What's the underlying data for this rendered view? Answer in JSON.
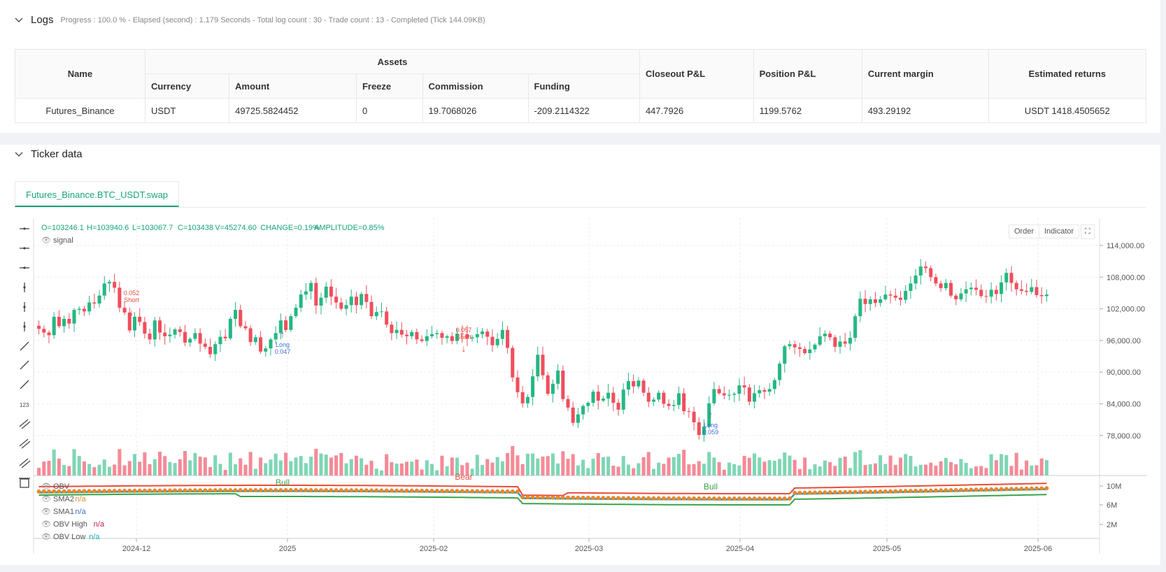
{
  "logs": {
    "title": "Logs",
    "progress": "Progress : 100.0 % - Elapsed (second) : 1.179  Seconds - Total log count : 30 - Trade count : 13 - Completed (Tick 144.09KB)",
    "table": {
      "h_name": "Name",
      "h_assets": "Assets",
      "h_currency": "Currency",
      "h_amount": "Amount",
      "h_freeze": "Freeze",
      "h_commission": "Commission",
      "h_funding": "Funding",
      "h_closeout": "Closeout P&L",
      "h_position": "Position P&L",
      "h_margin": "Current margin",
      "h_returns": "Estimated returns",
      "row": {
        "name": "Futures_Binance",
        "currency": "USDT",
        "amount": "49725.5824452",
        "freeze": "0",
        "commission": "19.7068026",
        "funding": "-209.2114322",
        "closeout": "447.7926",
        "position": "1199.5762",
        "margin": "493.29192",
        "returns": "USDT 1418.4505652"
      }
    }
  },
  "ticker": {
    "title": "Ticker data",
    "tab": "Futures_Binance.BTC_USDT.swap",
    "order_button": "Order",
    "indicator_button": "Indicator",
    "ohlc": {
      "o": "O=103246.1",
      "h": "H=103940.6",
      "l": "L=103067.7",
      "c": "C=103438",
      "v": "V=45274.60",
      "change": "CHANGE=0.19%",
      "amplitude": "AMPLITUDE=0.85%"
    },
    "signal_label": "signal",
    "legend": [
      {
        "name": "OBV",
        "value": "",
        "color": "#333333"
      },
      {
        "name": "SMA2",
        "value": "n/a",
        "color": "#e8892b"
      },
      {
        "name": "SMA1",
        "value": "n/a",
        "color": "#3b6fd8"
      },
      {
        "name": "OBV High",
        "value": "n/a",
        "color": "#c2185b"
      },
      {
        "name": "OBV Low",
        "value": "n/a",
        "color": "#1ab0b0"
      }
    ]
  },
  "chart_data": [
    {
      "type": "candlestick",
      "price_ticks": [
        "114,000.00",
        "108,000.00",
        "102,000.00",
        "96,000.00",
        "90,000.00",
        "84,000.00",
        "78,000.00"
      ],
      "price_tick_values": [
        114000,
        108000,
        102000,
        96000,
        90000,
        84000,
        78000
      ],
      "x_ticks": [
        "2024-12",
        "2025",
        "2025-02",
        "2025-03",
        "2025-04",
        "2025-05",
        "2025-06"
      ],
      "closes": [
        98200,
        97500,
        97000,
        100500,
        98700,
        100100,
        99200,
        101800,
        102000,
        101500,
        103200,
        103000,
        104500,
        106800,
        107100,
        106000,
        102200,
        101300,
        97900,
        100500,
        99500,
        97300,
        96200,
        99800,
        97500,
        96800,
        97100,
        98100,
        97600,
        95600,
        96300,
        97400,
        95400,
        94800,
        93400,
        95300,
        96700,
        96400,
        100100,
        101800,
        98700,
        98300,
        95700,
        96600,
        93900,
        94500,
        96200,
        97400,
        99800,
        98000,
        100600,
        102200,
        104700,
        105300,
        106900,
        102600,
        104100,
        106200,
        104300,
        103200,
        102000,
        102700,
        104300,
        102700,
        104800,
        103300,
        100600,
        101400,
        101500,
        99000,
        97400,
        98000,
        97100,
        96800,
        97600,
        96200,
        95900,
        96800,
        97200,
        97400,
        96500,
        96800,
        95900,
        97300,
        97200,
        96400,
        96600,
        97200,
        97700,
        96700,
        95100,
        96300,
        98000,
        94600,
        89000,
        86200,
        84100,
        85300,
        89200,
        93300,
        89400,
        85900,
        87800,
        90300,
        84900,
        83300,
        80400,
        82000,
        83600,
        84200,
        86300,
        84600,
        85000,
        86100,
        84200,
        82900,
        86700,
        88300,
        87300,
        88400,
        86100,
        84400,
        84800,
        86100,
        84000,
        83600,
        83800,
        86000,
        82600,
        82500,
        80500,
        78100,
        79700,
        84100,
        86800,
        86000,
        85600,
        85700,
        85900,
        87500,
        87100,
        84400,
        86000,
        86600,
        86300,
        86800,
        88500,
        91600,
        94900,
        95300,
        94700,
        94400,
        93600,
        94300,
        95200,
        96800,
        97300,
        96600,
        94800,
        95800,
        95400,
        96500,
        100600,
        103900,
        102900,
        103800,
        103100,
        103800,
        104700,
        104500,
        104100,
        103700,
        105400,
        106800,
        108300,
        110000,
        109700,
        108000,
        106800,
        105900,
        106900,
        104500,
        103800,
        104900,
        105700,
        106000,
        105600,
        104400,
        104300,
        105600,
        104800,
        107000,
        108800,
        106900,
        105700,
        105400,
        105200,
        106100,
        104600,
        104400,
        104700
      ],
      "ohlc_status": "O=103246.1 H=103940.6 L=103067.7 C=103438"
    },
    {
      "type": "line",
      "y_ticks": [
        "10M",
        "6M",
        "2M"
      ],
      "y_tick_values": [
        10000000,
        6000000,
        2000000
      ],
      "series": [
        {
          "name": "OBV",
          "color": "#333333"
        },
        {
          "name": "SMA2",
          "color": "#e8892b"
        },
        {
          "name": "SMA1",
          "color": "#3b6fd8"
        },
        {
          "name": "OBV High",
          "color": "#c2185b"
        },
        {
          "name": "OBV Low",
          "color": "#1ab0b0"
        }
      ]
    }
  ],
  "annotations": {
    "short1": {
      "label": "Short",
      "qty": "0.052"
    },
    "long1": {
      "label": "Long",
      "qty": "0.047"
    },
    "short2": {
      "label": "Short",
      "qty": "0.057"
    },
    "long2": {
      "label": "Long",
      "qty": "0.059"
    },
    "bull1": "Bull",
    "bear1": "Bear",
    "bull2": "Bull"
  },
  "colors": {
    "up": "#26b783",
    "down": "#ef4f5d",
    "accent": "#1aa37a"
  }
}
